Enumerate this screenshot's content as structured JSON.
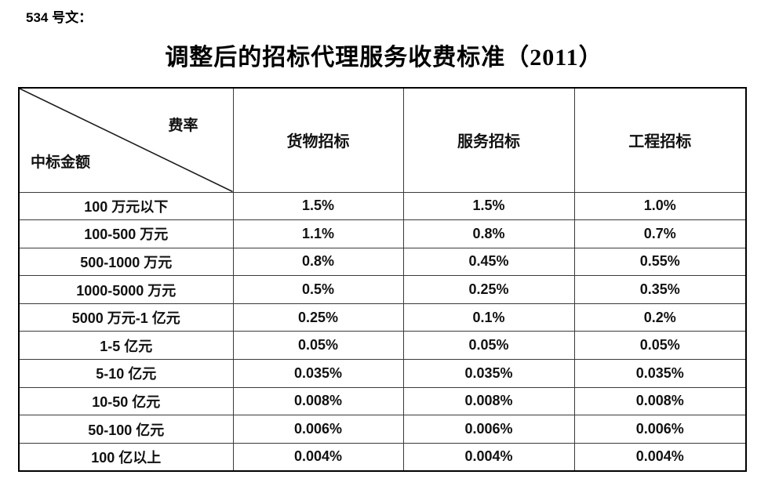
{
  "page": {
    "doc_label": "534 号文：",
    "title": "调整后的招标代理服务收费标准（2011）"
  },
  "table": {
    "corner": {
      "top_right": "费率",
      "bottom_left": "中标金额"
    },
    "columns": [
      "货物招标",
      "服务招标",
      "工程招标"
    ],
    "rows": [
      {
        "label": "100 万元以下",
        "values": [
          "1.5%",
          "1.5%",
          "1.0%"
        ]
      },
      {
        "label": "100-500 万元",
        "values": [
          "1.1%",
          "0.8%",
          "0.7%"
        ]
      },
      {
        "label": "500-1000 万元",
        "values": [
          "0.8%",
          "0.45%",
          "0.55%"
        ]
      },
      {
        "label": "1000-5000 万元",
        "values": [
          "0.5%",
          "0.25%",
          "0.35%"
        ]
      },
      {
        "label": "5000 万元-1 亿元",
        "values": [
          "0.25%",
          "0.1%",
          "0.2%"
        ]
      },
      {
        "label": "1-5 亿元",
        "values": [
          "0.05%",
          "0.05%",
          "0.05%"
        ]
      },
      {
        "label": "5-10 亿元",
        "values": [
          "0.035%",
          "0.035%",
          "0.035%"
        ]
      },
      {
        "label": "10-50 亿元",
        "values": [
          "0.008%",
          "0.008%",
          "0.008%"
        ]
      },
      {
        "label": "50-100 亿元",
        "values": [
          "0.006%",
          "0.006%",
          "0.006%"
        ]
      },
      {
        "label": "100 亿以上",
        "values": [
          "0.004%",
          "0.004%",
          "0.004%"
        ]
      }
    ]
  },
  "colors": {
    "text": "#111111",
    "border_outer": "#000000",
    "border_inner": "#3a3a3a",
    "background": "#ffffff"
  }
}
